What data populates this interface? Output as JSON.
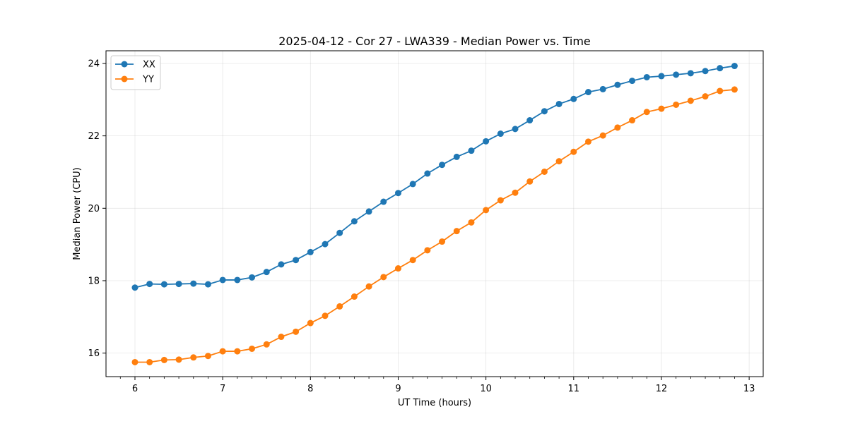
{
  "chart_data": {
    "type": "line",
    "title": "2025-04-12 - Cor 27 - LWA339 - Median Power vs. Time",
    "xlabel": "UT Time (hours)",
    "ylabel": "Median Power (CPU)",
    "xlim": [
      5.67,
      13.16
    ],
    "ylim": [
      15.35,
      24.35
    ],
    "xticks": [
      6,
      7,
      8,
      9,
      10,
      11,
      12,
      13
    ],
    "xtick_labels": [
      "6",
      "7",
      "8",
      "9",
      "10",
      "11",
      "12",
      "13"
    ],
    "yticks": [
      16,
      18,
      20,
      22,
      24
    ],
    "ytick_labels": [
      "16",
      "18",
      "20",
      "22",
      "24"
    ],
    "grid": true,
    "legend_position": "top-left",
    "x": [
      6.0,
      6.1667,
      6.3333,
      6.5,
      6.6667,
      6.8333,
      7.0,
      7.1667,
      7.3333,
      7.5,
      7.6667,
      7.8333,
      8.0,
      8.1667,
      8.3333,
      8.5,
      8.6667,
      8.8333,
      9.0,
      9.1667,
      9.3333,
      9.5,
      9.6667,
      9.8333,
      10.0,
      10.1667,
      10.3333,
      10.5,
      10.6667,
      10.8333,
      11.0,
      11.1667,
      11.3333,
      11.5,
      11.6667,
      11.8333,
      12.0,
      12.1667,
      12.3333,
      12.5,
      12.6667,
      12.8333
    ],
    "series": [
      {
        "name": "XX",
        "color": "#1f77b4",
        "values": [
          17.81,
          17.91,
          17.9,
          17.91,
          17.92,
          17.9,
          18.02,
          18.02,
          18.09,
          18.24,
          18.45,
          18.57,
          18.79,
          19.01,
          19.32,
          19.64,
          19.91,
          20.18,
          20.42,
          20.67,
          20.96,
          21.2,
          21.42,
          21.59,
          21.85,
          22.06,
          22.19,
          22.43,
          22.68,
          22.88,
          23.02,
          23.21,
          23.29,
          23.41,
          23.52,
          23.62,
          23.65,
          23.69,
          23.73,
          23.79,
          23.87,
          23.93
        ]
      },
      {
        "name": "YY",
        "color": "#ff7f0e",
        "values": [
          15.75,
          15.75,
          15.81,
          15.82,
          15.88,
          15.92,
          16.05,
          16.05,
          16.12,
          16.24,
          16.45,
          16.59,
          16.83,
          17.03,
          17.29,
          17.56,
          17.84,
          18.1,
          18.34,
          18.57,
          18.84,
          19.08,
          19.37,
          19.61,
          19.95,
          20.22,
          20.43,
          20.74,
          21.01,
          21.3,
          21.56,
          21.84,
          22.01,
          22.23,
          22.43,
          22.66,
          22.75,
          22.86,
          22.97,
          23.09,
          23.24,
          23.28
        ]
      }
    ]
  }
}
